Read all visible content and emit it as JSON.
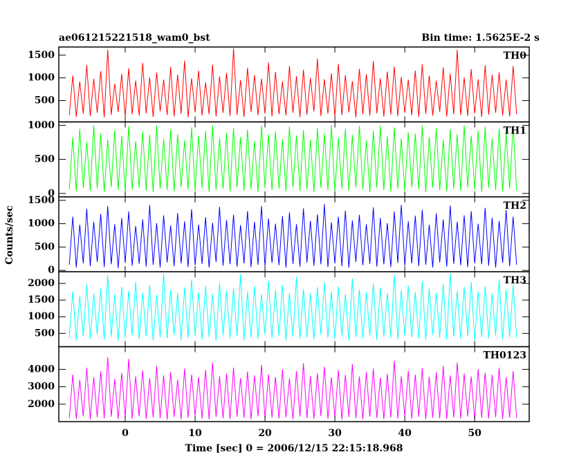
{
  "chart_data": {
    "type": "line",
    "title": "ae061215221518_wam0_bst",
    "subtitle": "Bin time: 1.5625E-2 s",
    "xlabel": "Time [sec] 0 = 2006/12/15 22:15:18.968",
    "ylabel": "Counts/sec",
    "xlim": [
      -9.5,
      57.8
    ],
    "xticks": [
      0,
      10,
      20,
      30,
      40,
      50
    ],
    "grid": false,
    "x": [
      -8,
      -7.5,
      -7,
      -6.5,
      -6,
      -5.5,
      -5,
      -4.5,
      -4,
      -3.5,
      -3,
      -2.5,
      -2,
      -1.5,
      -1,
      -0.5,
      0,
      0.5,
      1,
      1.5,
      2,
      2.5,
      3,
      3.5,
      4,
      4.5,
      5,
      5.5,
      6,
      6.5,
      7,
      7.5,
      8,
      8.5,
      9,
      9.5,
      10,
      10.5,
      11,
      11.5,
      12,
      12.5,
      13,
      13.5,
      14,
      14.5,
      15,
      15.5,
      16,
      16.5,
      17,
      17.5,
      18,
      18.5,
      19,
      19.5,
      20,
      20.5,
      21,
      21.5,
      22,
      22.5,
      23,
      23.5,
      24,
      24.5,
      25,
      25.5,
      26,
      26.5,
      27,
      27.5,
      28,
      28.5,
      29,
      29.5,
      30,
      30.5,
      31,
      31.5,
      32,
      32.5,
      33,
      33.5,
      34,
      34.5,
      35,
      35.5,
      36,
      36.5,
      37,
      37.5,
      38,
      38.5,
      39,
      39.5,
      40,
      40.5,
      41,
      41.5,
      42,
      42.5,
      43,
      43.5,
      44,
      44.5,
      45,
      45.5,
      46,
      46.5,
      47,
      47.5,
      48,
      48.5,
      49,
      49.5,
      50,
      50.5,
      51,
      51.5,
      52,
      52.5,
      53,
      53.5,
      54,
      54.5,
      55,
      55.5,
      56
    ],
    "panels": [
      {
        "name": "TH0",
        "color": "#ff0000",
        "ylim": [
          30,
          1680
        ],
        "yticks": [
          500,
          1000,
          1500
        ],
        "values": [
          180,
          1050,
          140,
          920,
          210,
          1280,
          160,
          980,
          230,
          1150,
          130,
          1620,
          190,
          870,
          250,
          1090,
          150,
          1210,
          200,
          940,
          170,
          1330,
          220,
          1010,
          140,
          1120,
          260,
          960,
          180,
          1240,
          150,
          1070,
          210,
          1380,
          130,
          990,
          240,
          1160,
          170,
          900,
          200,
          1290,
          150,
          1030,
          230,
          1110,
          160,
          1650,
          190,
          950,
          140,
          1220,
          250,
          1060,
          180,
          980,
          210,
          1340,
          150,
          1130,
          200,
          920,
          170,
          1260,
          230,
          1040,
          140,
          1180,
          190,
          1000,
          260,
          1420,
          160,
          970,
          210,
          1100,
          150,
          1310,
          180,
          1060,
          240,
          930,
          130,
          1200,
          200,
          1080,
          170,
          1370,
          220,
          990,
          150,
          1140,
          190,
          1250,
          160,
          1020,
          230,
          960,
          180,
          1160,
          140,
          1300,
          210,
          1050,
          170,
          940,
          250,
          1230,
          150,
          1090,
          200,
          1620,
          180,
          1010,
          160,
          1190,
          220,
          970,
          140,
          1280,
          190,
          1070,
          230,
          1120,
          170,
          960,
          150,
          1260,
          200
        ]
      },
      {
        "name": "TH1",
        "color": "#00ff00",
        "ylim": [
          -50,
          1050
        ],
        "yticks": [
          0,
          500,
          1000
        ],
        "values": [
          60,
          820,
          30,
          950,
          80,
          760,
          40,
          1000,
          70,
          880,
          20,
          790,
          90,
          930,
          50,
          840,
          30,
          990,
          60,
          770,
          80,
          910,
          40,
          860,
          20,
          1000,
          70,
          800,
          50,
          940,
          30,
          870,
          90,
          780,
          60,
          970,
          40,
          850,
          80,
          920,
          20,
          1000,
          50,
          810,
          70,
          890,
          30,
          960,
          90,
          830,
          40,
          940,
          60,
          770,
          20,
          1000,
          80,
          870,
          50,
          910,
          70,
          800,
          30,
          980,
          90,
          850,
          40,
          930,
          60,
          790,
          20,
          960,
          80,
          880,
          50,
          1000,
          30,
          820,
          70,
          950,
          40,
          860,
          90,
          990,
          60,
          780,
          20,
          920,
          80,
          1000,
          50,
          840,
          30,
          970,
          70,
          810,
          40,
          900,
          90,
          880,
          60,
          1000,
          20,
          830,
          80,
          960,
          50,
          790,
          30,
          940,
          70,
          870,
          40,
          1000,
          90,
          850,
          60,
          920,
          20,
          980,
          80,
          810,
          50,
          950,
          30,
          890,
          70,
          1000,
          40
        ]
      },
      {
        "name": "TH2",
        "color": "#0000ff",
        "ylim": [
          -30,
          1575
        ],
        "yticks": [
          0,
          500,
          1000,
          1500
        ],
        "values": [
          120,
          1150,
          60,
          980,
          150,
          1320,
          90,
          1040,
          180,
          1210,
          70,
          1380,
          130,
          990,
          50,
          1120,
          160,
          1260,
          100,
          950,
          140,
          1090,
          80,
          1400,
          120,
          1010,
          60,
          1180,
          170,
          960,
          90,
          1230,
          150,
          1050,
          70,
          1310,
          110,
          980,
          140,
          1140,
          60,
          1020,
          180,
          1360,
          100,
          1080,
          130,
          1190,
          80,
          970,
          150,
          1270,
          70,
          1040,
          120,
          1380,
          90,
          1110,
          160,
          1000,
          110,
          1160,
          60,
          1240,
          140,
          990,
          80,
          1330,
          170,
          1060,
          100,
          1200,
          130,
          1420,
          70,
          1030,
          150,
          1150,
          90,
          1280,
          60,
          1070,
          180,
          1190,
          110,
          990,
          140,
          1350,
          80,
          1120,
          130,
          1010,
          70,
          1260,
          160,
          1400,
          100,
          1050,
          150,
          1170,
          90,
          1300,
          120,
          980,
          60,
          1220,
          170,
          1090,
          80,
          1390,
          140,
          1040,
          110,
          1180,
          70,
          1270,
          150,
          1000,
          130,
          1340,
          100,
          1130,
          60,
          1060,
          160,
          1290,
          90,
          1150,
          120
        ]
      },
      {
        "name": "TH3",
        "color": "#00ffff",
        "ylim": [
          100,
          2350
        ],
        "yticks": [
          500,
          1000,
          1500,
          2000
        ],
        "values": [
          380,
          1750,
          300,
          1620,
          420,
          1980,
          340,
          1700,
          460,
          1850,
          310,
          2250,
          400,
          1680,
          280,
          1900,
          360,
          1780,
          440,
          2050,
          330,
          1720,
          410,
          1950,
          290,
          1660,
          380,
          2300,
          350,
          1810,
          450,
          1700,
          300,
          1880,
          370,
          2120,
          420,
          1740,
          320,
          1930,
          390,
          1690,
          280,
          2010,
          440,
          1780,
          350,
          1860,
          410,
          2280,
          300,
          1750,
          380,
          1920,
          330,
          1680,
          460,
          2080,
          360,
          1800,
          420,
          1960,
          290,
          1720,
          400,
          2200,
          340,
          1830,
          380,
          1700,
          310,
          1890,
          450,
          2030,
          370,
          1760,
          330,
          1910,
          420,
          1680,
          290,
          2150,
          390,
          1820,
          350,
          1740,
          440,
          1990,
          300,
          1870,
          410,
          1710,
          360,
          2260,
          320,
          1800,
          430,
          1940,
          380,
          1750,
          340,
          2070,
          300,
          1850,
          450,
          1720,
          370,
          1980,
          310,
          2300,
          400,
          1780,
          330,
          1900,
          420,
          2040,
          290,
          1760,
          380,
          1920,
          350,
          1700,
          440,
          2120,
          320,
          1810,
          390,
          1950,
          360
        ]
      },
      {
        "name": "TH0123",
        "color": "#ff00ff",
        "ylim": [
          1000,
          5300
        ],
        "yticks": [
          2000,
          3000,
          4000
        ],
        "values": [
          1200,
          3700,
          1150,
          3400,
          1300,
          4100,
          1120,
          3550,
          1250,
          3900,
          1180,
          4700,
          1280,
          3450,
          1140,
          3800,
          1220,
          4600,
          1160,
          3600,
          1300,
          3950,
          1130,
          3500,
          1240,
          4200,
          1190,
          3650,
          1110,
          3850,
          1270,
          3420,
          1150,
          4050,
          1210,
          3700,
          1320,
          3550,
          1170,
          3980,
          1130,
          4400,
          1260,
          3600,
          1190,
          3760,
          1140,
          4100,
          1280,
          3500,
          1210,
          3880,
          1120,
          3650,
          1300,
          4250,
          1160,
          3720,
          1230,
          3560,
          1180,
          4000,
          1250,
          3480,
          1140,
          3900,
          1290,
          4350,
          1200,
          3620,
          1150,
          3780,
          1310,
          4150,
          1170,
          3540,
          1240,
          3960,
          1120,
          3680,
          1260,
          4300,
          1190,
          3590,
          1130,
          3850,
          1280,
          4050,
          1210,
          3520,
          1140,
          3740,
          1230,
          4500,
          1180,
          3600,
          1300,
          3920,
          1160,
          3700,
          1270,
          4080,
          1120,
          3570,
          1220,
          3830,
          1190,
          4200,
          1150,
          3650,
          1240,
          4400,
          1170,
          3760,
          1290,
          3590,
          1130,
          4020,
          1210,
          3800,
          1180,
          3690,
          1260,
          4100,
          1140,
          3550,
          1230,
          3900,
          1200
        ]
      }
    ]
  }
}
